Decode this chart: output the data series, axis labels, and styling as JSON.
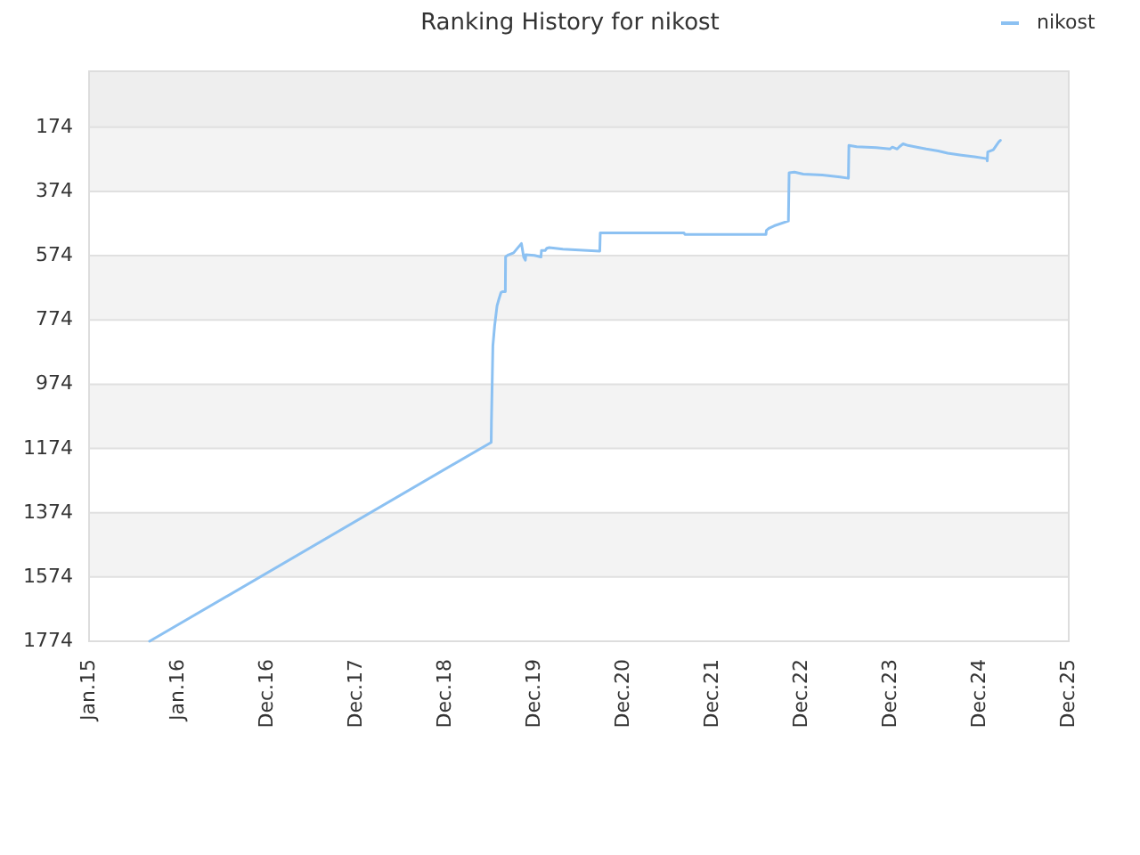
{
  "chart_data": {
    "type": "line",
    "title": "Ranking History for nikost",
    "x": [
      "2015-09-06",
      "2019-07-07",
      "2019-07-08",
      "2019-07-14",
      "2019-07-21",
      "2019-07-31",
      "2019-08-07",
      "2019-08-16",
      "2019-08-22",
      "2019-09-03",
      "2019-09-04",
      "2019-09-12",
      "2019-10-07",
      "2019-10-19",
      "2019-11-08",
      "2019-11-17",
      "2019-11-24",
      "2019-11-26",
      "2019-12-31",
      "2020-01-27",
      "2020-01-29",
      "2020-02-13",
      "2020-02-20",
      "2020-03-01",
      "2020-04-26",
      "2020-09-24",
      "2020-09-26",
      "2021-09-04",
      "2021-09-08",
      "2022-08-06",
      "2022-08-08",
      "2022-08-20",
      "2022-09-09",
      "2022-11-06",
      "2022-11-09",
      "2022-12-01",
      "2023-01-06",
      "2023-03-25",
      "2023-06-06",
      "2023-07-10",
      "2023-07-12",
      "2023-08-13",
      "2023-11-01",
      "2023-12-27",
      "2024-01-06",
      "2024-01-26",
      "2024-02-04",
      "2024-02-19",
      "2024-03-10",
      "2024-04-20",
      "2024-05-24",
      "2024-07-12",
      "2024-08-20",
      "2024-10-15",
      "2024-12-07",
      "2025-01-27",
      "2025-01-29",
      "2025-01-31",
      "2025-02-23",
      "2025-03-05",
      "2025-03-17",
      "2025-03-24"
    ],
    "series": [
      {
        "name": "nikost",
        "color": "#8cc1f2",
        "values": [
          1774,
          1155,
          1094,
          854,
          793,
          730,
          711,
          689,
          686,
          686,
          577,
          573,
          565,
          554,
          536,
          578,
          588,
          571,
          573,
          578,
          558,
          558,
          551,
          549,
          554,
          560,
          503,
          503,
          508,
          508,
          495,
          488,
          481,
          466,
          316,
          314,
          320,
          323,
          329,
          333,
          231,
          235,
          238,
          242,
          236,
          242,
          235,
          226,
          231,
          237,
          242,
          248,
          255,
          261,
          266,
          272,
          279,
          251,
          244,
          233,
          220,
          215
        ]
      }
    ],
    "xlim": [
      "2015-01-01",
      "2025-12-29"
    ],
    "xticks": [
      {
        "value": "2015-01-01",
        "label": "Jan.15"
      },
      {
        "value": "2016-01-01",
        "label": "Jan.16"
      },
      {
        "value": "2016-12-31",
        "label": "Dec.16"
      },
      {
        "value": "2017-12-31",
        "label": "Dec.17"
      },
      {
        "value": "2018-12-31",
        "label": "Dec.18"
      },
      {
        "value": "2019-12-31",
        "label": "Dec.19"
      },
      {
        "value": "2020-12-30",
        "label": "Dec.20"
      },
      {
        "value": "2021-12-30",
        "label": "Dec.21"
      },
      {
        "value": "2022-12-30",
        "label": "Dec.22"
      },
      {
        "value": "2023-12-30",
        "label": "Dec.23"
      },
      {
        "value": "2024-12-29",
        "label": "Dec.24"
      },
      {
        "value": "2025-12-29",
        "label": "Dec.25"
      }
    ],
    "ylim": [
      1774,
      0
    ],
    "yticks": [
      174,
      374,
      574,
      774,
      974,
      1174,
      1374,
      1574,
      1774
    ],
    "bands": [
      {
        "axis": "y",
        "from": 0,
        "to": 174,
        "color": "#eeeeee"
      },
      {
        "axis": "y",
        "from": 174,
        "to": 374,
        "color": "#f3f3f3"
      },
      {
        "axis": "y",
        "from": 574,
        "to": 774,
        "color": "#f3f3f3"
      },
      {
        "axis": "y",
        "from": 974,
        "to": 1174,
        "color": "#f3f3f3"
      },
      {
        "axis": "y",
        "from": 1374,
        "to": 1574,
        "color": "#f3f3f3"
      }
    ],
    "grid": "y",
    "legend": "top right"
  }
}
